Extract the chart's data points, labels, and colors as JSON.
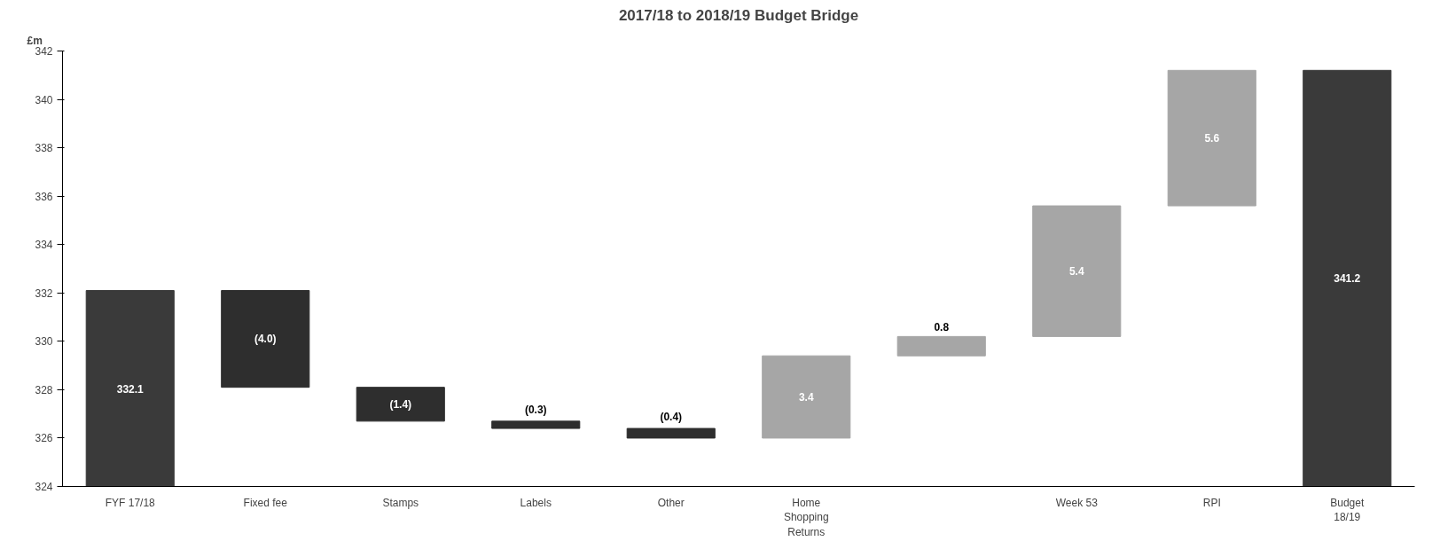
{
  "chart_data": {
    "type": "bar",
    "title": "2017/18 to 2018/19 Budget Bridge",
    "ylabel": "£m",
    "categories": [
      "FYF 17/18",
      "Fixed fee",
      "Stamps",
      "Labels",
      "Other",
      "Home\nShopping\nReturns",
      null,
      "Week 53",
      "RPI",
      "Budget\n18/19"
    ],
    "values": [
      332.1,
      -4.0,
      -1.4,
      -0.3,
      -0.4,
      3.4,
      0.8,
      5.4,
      5.6,
      341.2
    ],
    "base": [
      null,
      332.1,
      328.1,
      326.7,
      326.4,
      326.0,
      329.4,
      330.2,
      335.6,
      null
    ],
    "value_labels": [
      "332.1",
      "(4.0)",
      "(1.4)",
      "(0.3)",
      "(0.4)",
      "3.4",
      "0.8",
      "5.4",
      "5.6",
      "341.2"
    ],
    "colors": [
      "#3a3a3a",
      "#2e2e2e",
      "#2e2e2e",
      "#2e2e2e",
      "#2e2e2e",
      "#a6a6a6",
      "#a6a6a6",
      "#a6a6a6",
      "#a6a6a6",
      "#3a3a3a"
    ],
    "ylim": [
      324,
      342
    ],
    "yticks": [
      324,
      326,
      328,
      330,
      332,
      334,
      336,
      338,
      340,
      342
    ],
    "grid": false
  }
}
